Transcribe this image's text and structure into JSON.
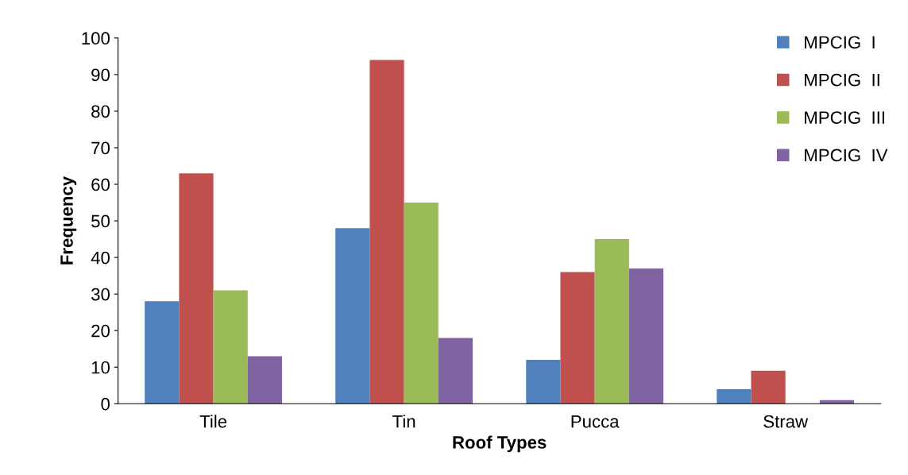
{
  "chart_data": {
    "type": "bar",
    "xlabel": "Roof Types",
    "ylabel": "Frequency",
    "categories": [
      "Tile",
      "Tin",
      "Pucca",
      "Straw"
    ],
    "series": [
      {
        "name": "MPCIG  I",
        "color": "#4f81bd",
        "values": [
          28,
          48,
          12,
          4
        ]
      },
      {
        "name": "MPCIG  II",
        "color": "#c0504d",
        "values": [
          63,
          94,
          36,
          9
        ]
      },
      {
        "name": "MPCIG  III",
        "color": "#9bbb59",
        "values": [
          31,
          55,
          45,
          0
        ]
      },
      {
        "name": "MPCIG  IV",
        "color": "#8064a2",
        "values": [
          13,
          18,
          37,
          1
        ]
      }
    ],
    "ylim": [
      0,
      100
    ],
    "yticks": [
      0,
      10,
      20,
      30,
      40,
      50,
      60,
      70,
      80,
      90,
      100
    ],
    "grid": false,
    "legend": "top right"
  }
}
